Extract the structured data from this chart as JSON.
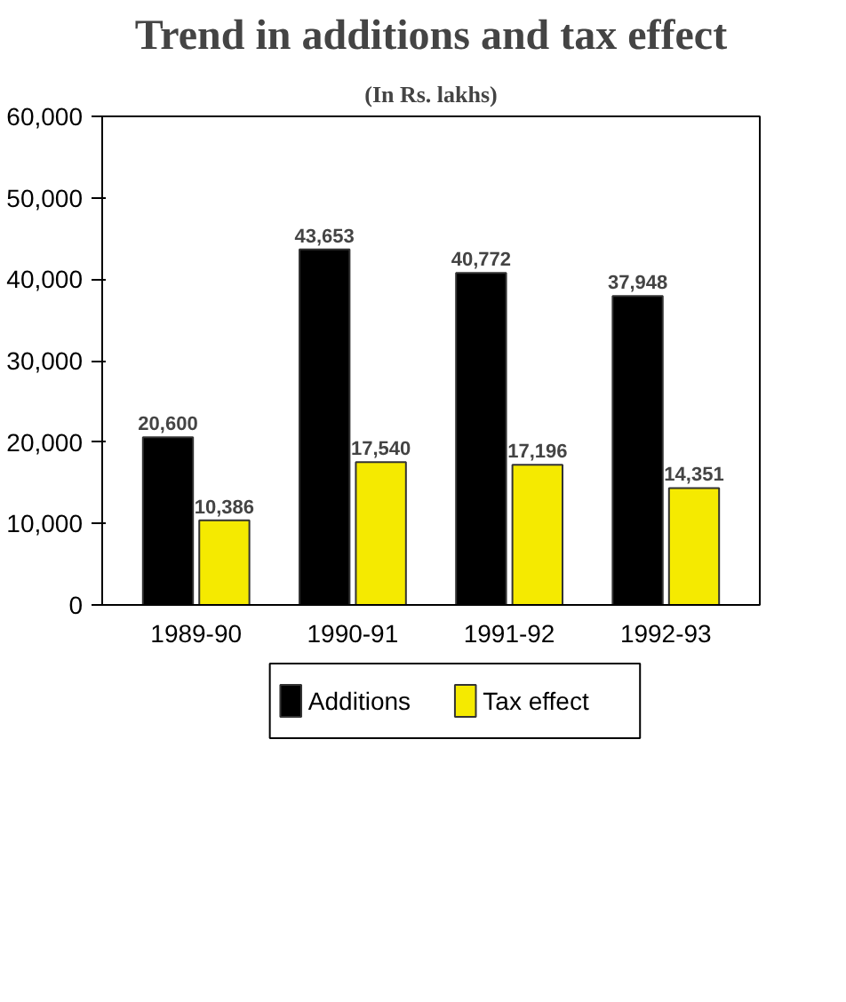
{
  "chart_data": {
    "type": "bar",
    "title": "Trend in additions and tax effect",
    "subtitle": "(In Rs. lakhs)",
    "categories": [
      "1989-90",
      "1990-91",
      "1991-92",
      "1992-93"
    ],
    "series": [
      {
        "name": "Additions",
        "color": "#000000",
        "values": [
          20600,
          43653,
          40772,
          37948
        ],
        "value_labels": [
          "20,600",
          "43,653",
          "40,772",
          "37,948"
        ]
      },
      {
        "name": "Tax effect",
        "color": "#f5ea00",
        "values": [
          10386,
          17540,
          17196,
          14351
        ],
        "value_labels": [
          "10,386",
          "17,540",
          "17,196",
          "14,351"
        ]
      }
    ],
    "ylim": [
      0,
      60000
    ],
    "yticks": [
      {
        "value": 0,
        "label": "0"
      },
      {
        "value": 10000,
        "label": "10,000"
      },
      {
        "value": 20000,
        "label": "20,000"
      },
      {
        "value": 30000,
        "label": "30,000"
      },
      {
        "value": 40000,
        "label": "40,000"
      },
      {
        "value": 50000,
        "label": "50,000"
      },
      {
        "value": 60000,
        "label": "60,000"
      }
    ],
    "legend": "bottom"
  }
}
